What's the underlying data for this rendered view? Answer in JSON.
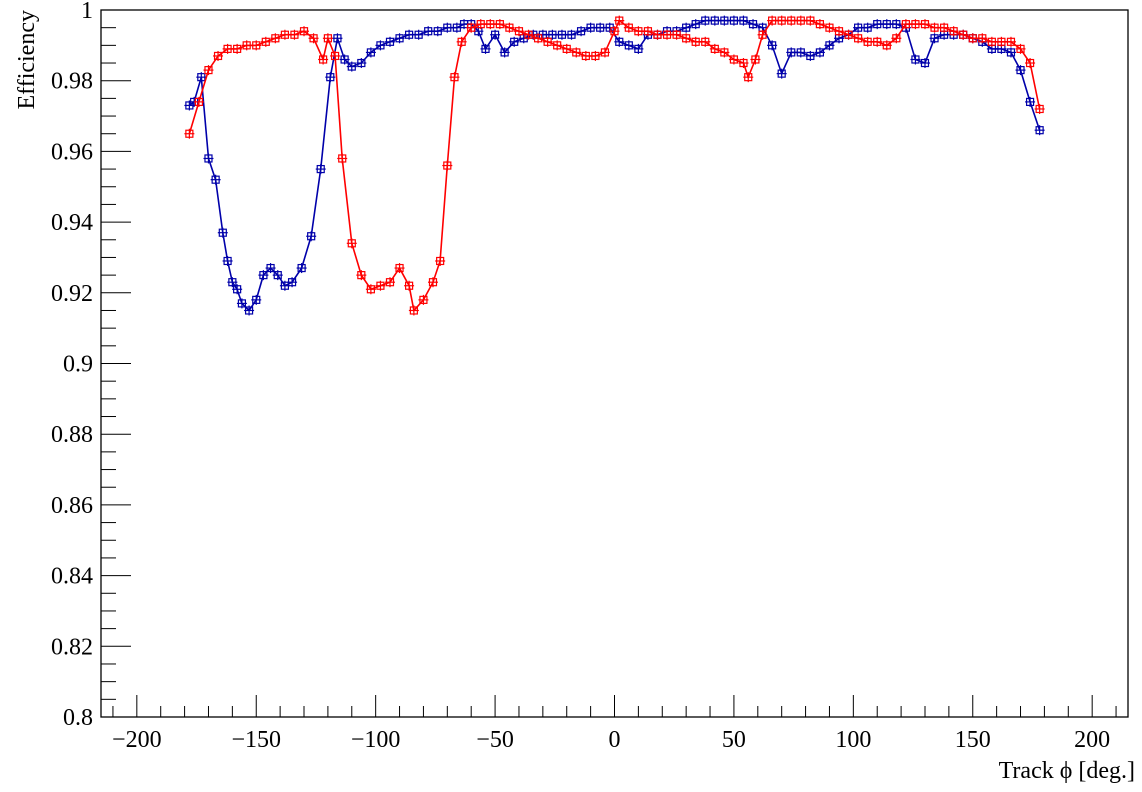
{
  "chart_data": {
    "type": "line",
    "xlabel": "Track ϕ [deg.]",
    "ylabel": "Efficiency",
    "xlim": [
      -215,
      215
    ],
    "ylim": [
      0.8,
      1.0
    ],
    "x_ticks": [
      -200,
      -150,
      -100,
      -50,
      0,
      50,
      100,
      150,
      200
    ],
    "x_tick_labels": [
      "−200",
      "−150",
      "−100",
      "−50",
      "0",
      "50",
      "100",
      "150",
      "200"
    ],
    "y_ticks": [
      0.8,
      0.82,
      0.84,
      0.86,
      0.88,
      0.9,
      0.92,
      0.94,
      0.96,
      0.98,
      1.0
    ],
    "y_tick_labels": [
      "0.8",
      "0.82",
      "0.84",
      "0.86",
      "0.88",
      "0.9",
      "0.92",
      "0.94",
      "0.96",
      "0.98",
      "1"
    ],
    "grid": false,
    "legend": "none",
    "series": [
      {
        "color": "#0000aa",
        "x": [
          -178,
          -176,
          -173,
          -170,
          -167,
          -164,
          -162,
          -160,
          -158,
          -156,
          -153,
          -150,
          -147,
          -144,
          -141,
          -138,
          -135,
          -131,
          -127,
          -123,
          -119,
          -116,
          -113,
          -110,
          -106,
          -102,
          -98,
          -94,
          -90,
          -86,
          -82,
          -78,
          -74,
          -70,
          -66,
          -63,
          -60,
          -57,
          -54,
          -50,
          -46,
          -42,
          -38,
          -34,
          -30,
          -26,
          -22,
          -18,
          -14,
          -10,
          -6,
          -2,
          2,
          6,
          10,
          14,
          18,
          22,
          26,
          30,
          34,
          38,
          42,
          46,
          50,
          54,
          58,
          62,
          66,
          70,
          74,
          78,
          82,
          86,
          90,
          94,
          98,
          102,
          106,
          110,
          114,
          118,
          122,
          126,
          130,
          134,
          138,
          142,
          146,
          150,
          154,
          158,
          162,
          166,
          170,
          174,
          178
        ],
        "y": [
          0.973,
          0.974,
          0.981,
          0.958,
          0.952,
          0.937,
          0.929,
          0.923,
          0.921,
          0.917,
          0.915,
          0.918,
          0.925,
          0.927,
          0.925,
          0.922,
          0.923,
          0.927,
          0.936,
          0.955,
          0.981,
          0.992,
          0.986,
          0.984,
          0.985,
          0.988,
          0.99,
          0.991,
          0.992,
          0.993,
          0.993,
          0.994,
          0.994,
          0.995,
          0.995,
          0.996,
          0.996,
          0.994,
          0.989,
          0.993,
          0.988,
          0.991,
          0.992,
          0.993,
          0.993,
          0.993,
          0.993,
          0.993,
          0.994,
          0.995,
          0.995,
          0.995,
          0.991,
          0.99,
          0.989,
          0.993,
          0.993,
          0.994,
          0.994,
          0.995,
          0.996,
          0.997,
          0.997,
          0.997,
          0.997,
          0.997,
          0.996,
          0.995,
          0.99,
          0.982,
          0.988,
          0.988,
          0.987,
          0.988,
          0.99,
          0.992,
          0.993,
          0.995,
          0.995,
          0.996,
          0.996,
          0.996,
          0.995,
          0.986,
          0.985,
          0.992,
          0.993,
          0.993,
          0.993,
          0.992,
          0.991,
          0.989,
          0.989,
          0.988,
          0.983,
          0.974,
          0.966
        ]
      },
      {
        "color": "#ff0000",
        "x": [
          -178,
          -174,
          -170,
          -166,
          -162,
          -158,
          -154,
          -150,
          -146,
          -142,
          -138,
          -134,
          -130,
          -126,
          -122,
          -120,
          -117,
          -114,
          -110,
          -106,
          -102,
          -98,
          -94,
          -90,
          -86,
          -84,
          -80,
          -76,
          -73,
          -70,
          -67,
          -64,
          -60,
          -56,
          -52,
          -48,
          -44,
          -40,
          -36,
          -32,
          -28,
          -24,
          -20,
          -16,
          -12,
          -8,
          -4,
          0,
          2,
          6,
          10,
          14,
          18,
          22,
          26,
          30,
          34,
          38,
          42,
          46,
          50,
          54,
          56,
          59,
          62,
          66,
          70,
          74,
          78,
          82,
          86,
          90,
          94,
          98,
          102,
          106,
          110,
          114,
          118,
          122,
          126,
          130,
          134,
          138,
          142,
          146,
          150,
          154,
          158,
          162,
          166,
          170,
          174,
          178
        ],
        "y": [
          0.965,
          0.974,
          0.983,
          0.987,
          0.989,
          0.989,
          0.99,
          0.99,
          0.991,
          0.992,
          0.993,
          0.993,
          0.994,
          0.992,
          0.986,
          0.992,
          0.987,
          0.958,
          0.934,
          0.925,
          0.921,
          0.922,
          0.923,
          0.927,
          0.922,
          0.915,
          0.918,
          0.923,
          0.929,
          0.956,
          0.981,
          0.991,
          0.995,
          0.996,
          0.996,
          0.996,
          0.995,
          0.994,
          0.993,
          0.992,
          0.991,
          0.99,
          0.989,
          0.988,
          0.987,
          0.987,
          0.988,
          0.994,
          0.997,
          0.995,
          0.994,
          0.994,
          0.993,
          0.993,
          0.993,
          0.992,
          0.991,
          0.991,
          0.989,
          0.988,
          0.986,
          0.985,
          0.981,
          0.986,
          0.993,
          0.997,
          0.997,
          0.997,
          0.997,
          0.997,
          0.996,
          0.995,
          0.994,
          0.993,
          0.992,
          0.991,
          0.991,
          0.99,
          0.992,
          0.996,
          0.996,
          0.996,
          0.995,
          0.995,
          0.994,
          0.993,
          0.992,
          0.992,
          0.991,
          0.991,
          0.991,
          0.989,
          0.985,
          0.972
        ]
      }
    ]
  }
}
